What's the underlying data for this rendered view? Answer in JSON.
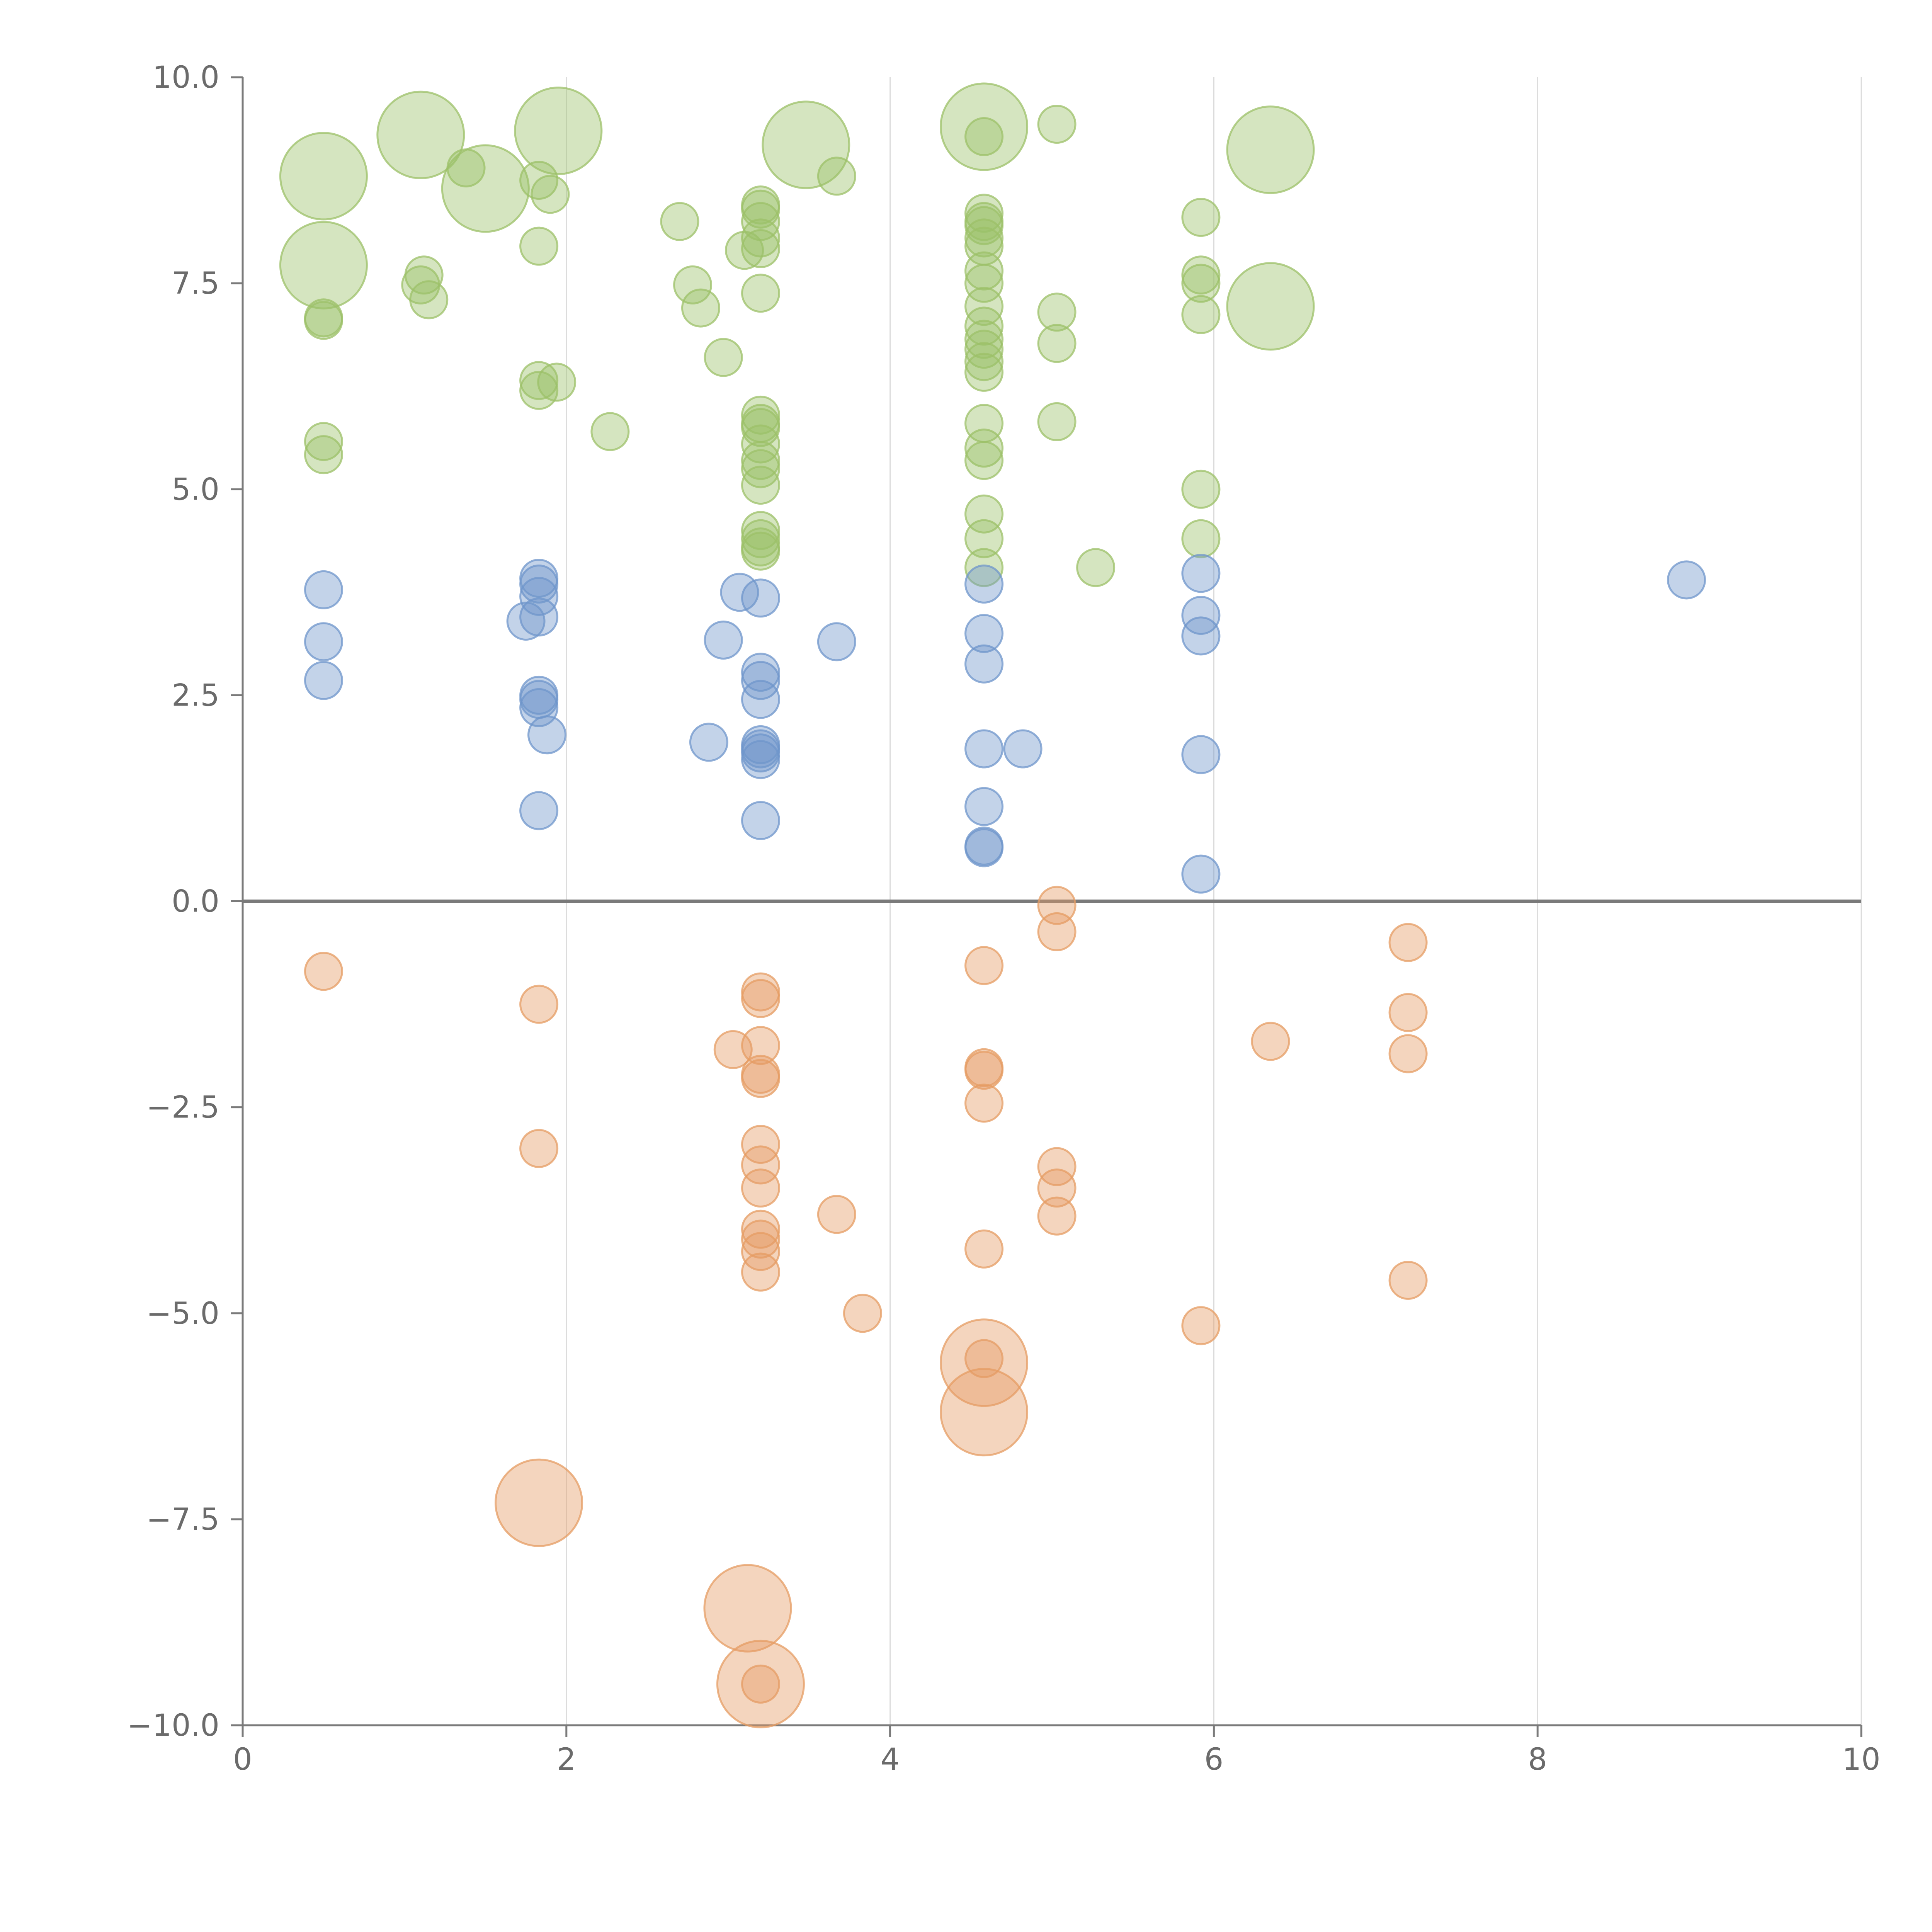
{
  "chart_data": {
    "type": "scatter",
    "title": "",
    "xlabel": "",
    "ylabel": "",
    "xlim": [
      0,
      10
    ],
    "ylim": [
      -10,
      10
    ],
    "grid": "vertical",
    "legend": "none",
    "x_ticks": [
      0,
      2,
      4,
      6,
      8,
      10
    ],
    "x_tick_labels": [
      "0",
      "2",
      "4",
      "6",
      "8",
      "10"
    ],
    "y_ticks": [
      10,
      7.5,
      5,
      2.5,
      0,
      -2.5,
      -5,
      -7.5,
      -10
    ],
    "y_tick_labels": [
      "10.0",
      "7.5",
      "5.0",
      "2.5",
      "0.0",
      "−2.5",
      "−5.0",
      "−7.5",
      "−10.0"
    ],
    "series": [
      {
        "name": "green",
        "color": "#9cc068",
        "points": [
          [
            0.5,
            8.8,
            3
          ],
          [
            0.5,
            7.72,
            3
          ],
          [
            0.5,
            7.08,
            1
          ],
          [
            0.5,
            7.05,
            1
          ],
          [
            0.5,
            5.58,
            1
          ],
          [
            0.5,
            5.42,
            1
          ],
          [
            1.1,
            9.3,
            3
          ],
          [
            1.12,
            7.6,
            1
          ],
          [
            1.1,
            7.48,
            1
          ],
          [
            1.15,
            7.3,
            1
          ],
          [
            1.38,
            8.9,
            1
          ],
          [
            1.5,
            8.65,
            3
          ],
          [
            1.83,
            8.75,
            1
          ],
          [
            1.83,
            7.95,
            1
          ],
          [
            1.83,
            6.32,
            1
          ],
          [
            1.83,
            6.2,
            1
          ],
          [
            1.9,
            8.58,
            1
          ],
          [
            1.94,
            6.3,
            1
          ],
          [
            1.95,
            9.35,
            3
          ],
          [
            2.27,
            5.7,
            1
          ],
          [
            2.7,
            8.25,
            1
          ],
          [
            2.78,
            7.48,
            1
          ],
          [
            2.83,
            7.2,
            1
          ],
          [
            2.97,
            6.6,
            1
          ],
          [
            3.1,
            7.9,
            1
          ],
          [
            3.2,
            8.45,
            1
          ],
          [
            3.2,
            8.4,
            1
          ],
          [
            3.2,
            8.25,
            1
          ],
          [
            3.2,
            8.05,
            1
          ],
          [
            3.2,
            7.92,
            1
          ],
          [
            3.2,
            7.38,
            1
          ],
          [
            3.2,
            5.9,
            1
          ],
          [
            3.2,
            5.8,
            1
          ],
          [
            3.2,
            5.75,
            1
          ],
          [
            3.2,
            5.55,
            1
          ],
          [
            3.2,
            5.35,
            1
          ],
          [
            3.2,
            5.25,
            1
          ],
          [
            3.2,
            5.05,
            1
          ],
          [
            3.2,
            4.5,
            1
          ],
          [
            3.2,
            4.4,
            1
          ],
          [
            3.2,
            4.3,
            1
          ],
          [
            3.2,
            4.25,
            1
          ],
          [
            3.48,
            9.18,
            3
          ],
          [
            3.67,
            8.8,
            1
          ],
          [
            4.58,
            9.4,
            3
          ],
          [
            4.58,
            9.28,
            1
          ],
          [
            4.58,
            8.35,
            1
          ],
          [
            4.58,
            8.25,
            1
          ],
          [
            4.58,
            8.2,
            1
          ],
          [
            4.58,
            8.05,
            1
          ],
          [
            4.58,
            7.95,
            1
          ],
          [
            4.58,
            7.65,
            1
          ],
          [
            4.58,
            7.5,
            1
          ],
          [
            4.58,
            7.22,
            1
          ],
          [
            4.58,
            6.98,
            1
          ],
          [
            4.58,
            6.82,
            1
          ],
          [
            4.58,
            6.7,
            1
          ],
          [
            4.58,
            6.55,
            1
          ],
          [
            4.58,
            6.42,
            1
          ],
          [
            4.58,
            5.8,
            1
          ],
          [
            4.58,
            5.5,
            1
          ],
          [
            4.58,
            5.35,
            1
          ],
          [
            4.58,
            4.7,
            1
          ],
          [
            4.58,
            4.4,
            1
          ],
          [
            4.58,
            4.05,
            1
          ],
          [
            5.03,
            9.43,
            1
          ],
          [
            5.03,
            7.15,
            1
          ],
          [
            5.03,
            6.77,
            1
          ],
          [
            5.03,
            5.82,
            1
          ],
          [
            5.27,
            4.05,
            1
          ],
          [
            5.92,
            8.3,
            1
          ],
          [
            5.92,
            7.6,
            1
          ],
          [
            5.92,
            7.5,
            1
          ],
          [
            5.92,
            7.12,
            1
          ],
          [
            5.92,
            5.0,
            1
          ],
          [
            5.92,
            4.4,
            1
          ],
          [
            6.35,
            9.12,
            3
          ],
          [
            6.35,
            7.22,
            3
          ]
        ]
      },
      {
        "name": "blue",
        "color": "#6f95cb",
        "points": [
          [
            0.5,
            3.78,
            1
          ],
          [
            0.5,
            3.15,
            1
          ],
          [
            0.5,
            2.68,
            1
          ],
          [
            1.75,
            3.4,
            1
          ],
          [
            1.83,
            3.92,
            1
          ],
          [
            1.83,
            3.85,
            1
          ],
          [
            1.83,
            3.7,
            1
          ],
          [
            1.83,
            3.45,
            1
          ],
          [
            1.83,
            2.5,
            1
          ],
          [
            1.83,
            2.45,
            1
          ],
          [
            1.83,
            2.35,
            1
          ],
          [
            1.88,
            2.02,
            1
          ],
          [
            1.83,
            1.1,
            1
          ],
          [
            2.88,
            1.93,
            1
          ],
          [
            2.97,
            3.17,
            1
          ],
          [
            3.07,
            3.75,
            1
          ],
          [
            3.2,
            3.68,
            1
          ],
          [
            3.2,
            2.78,
            1
          ],
          [
            3.2,
            2.68,
            1
          ],
          [
            3.2,
            2.45,
            1
          ],
          [
            3.2,
            1.9,
            1
          ],
          [
            3.2,
            1.85,
            1
          ],
          [
            3.2,
            1.8,
            1
          ],
          [
            3.2,
            1.72,
            1
          ],
          [
            3.2,
            0.98,
            1
          ],
          [
            3.67,
            3.15,
            1
          ],
          [
            4.58,
            3.85,
            1
          ],
          [
            4.58,
            3.25,
            1
          ],
          [
            4.58,
            2.88,
            1
          ],
          [
            4.58,
            1.85,
            1
          ],
          [
            4.58,
            1.15,
            1
          ],
          [
            4.58,
            0.67,
            1
          ],
          [
            4.58,
            0.65,
            1
          ],
          [
            4.82,
            1.85,
            1
          ],
          [
            5.92,
            3.98,
            1
          ],
          [
            5.92,
            3.47,
            1
          ],
          [
            5.92,
            3.22,
            1
          ],
          [
            5.92,
            1.78,
            1
          ],
          [
            5.92,
            0.33,
            1
          ],
          [
            8.92,
            3.9,
            1
          ]
        ]
      },
      {
        "name": "orange",
        "color": "#e59c63",
        "points": [
          [
            0.5,
            -0.85,
            1
          ],
          [
            1.83,
            -1.25,
            1
          ],
          [
            1.83,
            -3.0,
            1
          ],
          [
            1.83,
            -7.3,
            3
          ],
          [
            3.03,
            -1.8,
            1
          ],
          [
            3.12,
            -8.58,
            3
          ],
          [
            3.2,
            -1.1,
            1
          ],
          [
            3.2,
            -1.18,
            1
          ],
          [
            3.2,
            -1.75,
            1
          ],
          [
            3.2,
            -2.1,
            1
          ],
          [
            3.2,
            -2.15,
            1
          ],
          [
            3.2,
            -2.95,
            1
          ],
          [
            3.2,
            -3.2,
            1
          ],
          [
            3.2,
            -3.48,
            1
          ],
          [
            3.2,
            -3.98,
            1
          ],
          [
            3.2,
            -4.1,
            1
          ],
          [
            3.2,
            -4.25,
            1
          ],
          [
            3.2,
            -4.5,
            1
          ],
          [
            3.2,
            -9.5,
            1
          ],
          [
            3.2,
            -9.5,
            3
          ],
          [
            3.67,
            -3.8,
            1
          ],
          [
            3.83,
            -5.0,
            1
          ],
          [
            4.58,
            -0.78,
            1
          ],
          [
            4.58,
            -2.02,
            1
          ],
          [
            4.58,
            -2.05,
            1
          ],
          [
            4.58,
            -2.45,
            1
          ],
          [
            4.58,
            -4.22,
            1
          ],
          [
            4.58,
            -5.55,
            1
          ],
          [
            4.58,
            -5.6,
            3
          ],
          [
            4.58,
            -6.2,
            3
          ],
          [
            5.03,
            -0.05,
            1
          ],
          [
            5.03,
            -0.37,
            1
          ],
          [
            5.03,
            -3.22,
            1
          ],
          [
            5.03,
            -3.48,
            1
          ],
          [
            5.03,
            -3.82,
            1
          ],
          [
            5.92,
            -5.15,
            1
          ],
          [
            6.35,
            -1.7,
            1
          ],
          [
            7.2,
            -0.5,
            1
          ],
          [
            7.2,
            -1.35,
            1
          ],
          [
            7.2,
            -1.85,
            1
          ],
          [
            7.2,
            -4.6,
            1
          ]
        ]
      }
    ]
  }
}
